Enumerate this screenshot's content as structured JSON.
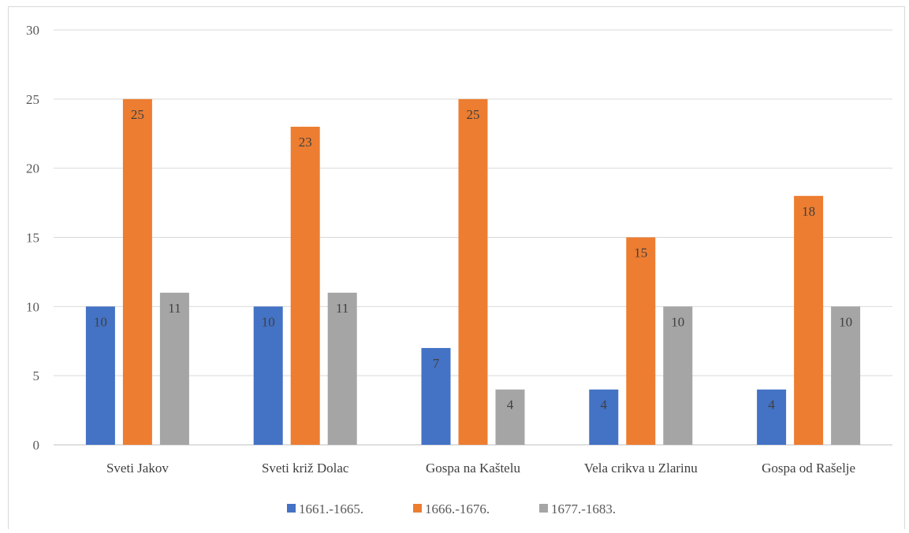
{
  "chart_data": {
    "type": "bar",
    "title": "",
    "xlabel": "",
    "ylabel": "",
    "categories": [
      "Sveti Jakov",
      "Sveti križ Dolac",
      "Gospa na Kaštelu",
      "Vela crikva u Zlarinu",
      "Gospa od Rašelje"
    ],
    "series": [
      {
        "name": "1661.-1665.",
        "color": "#4472c4",
        "values": [
          10,
          10,
          7,
          4,
          4
        ]
      },
      {
        "name": "1666.-1676.",
        "color": "#ed7d31",
        "values": [
          25,
          23,
          25,
          15,
          18
        ]
      },
      {
        "name": "1677.-1683.",
        "color": "#a5a5a5",
        "values": [
          11,
          11,
          4,
          10,
          10
        ]
      }
    ],
    "ylim": [
      0,
      30
    ],
    "yticks": [
      0,
      5,
      10,
      15,
      20,
      25,
      30
    ],
    "grid": true,
    "legend": "bottom",
    "data_labels": true
  }
}
